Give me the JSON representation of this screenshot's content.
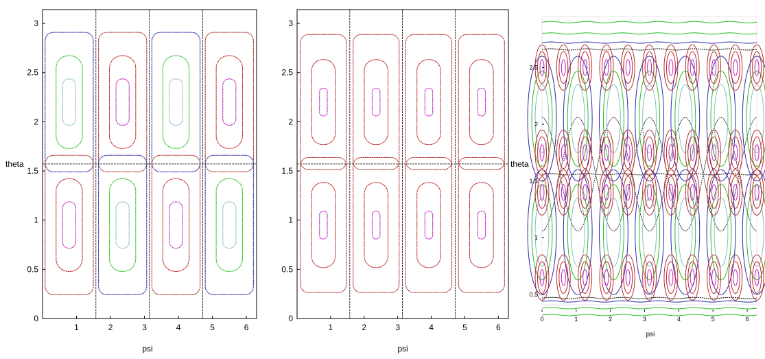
{
  "chart_data": [
    {
      "type": "line",
      "subtype": "phase-portrait-contours",
      "xlabel": "psi",
      "ylabel": "theta",
      "xlim": [
        0,
        6.3
      ],
      "ylim": [
        0,
        3.14
      ],
      "x_ticks": [
        1,
        2,
        3,
        4,
        5,
        6
      ],
      "y_ticks": [
        0,
        0.5,
        1,
        1.5,
        2,
        2.5,
        3
      ],
      "x_tick_labels": [
        "1",
        "2",
        "3",
        "4",
        "5",
        "6"
      ],
      "y_tick_labels": [
        "0",
        "0.5",
        "1",
        "1.5",
        "2",
        "2.5",
        "3"
      ],
      "separatrices": {
        "vertical_x": [
          1.571,
          3.142,
          4.712
        ],
        "horizontal_y": [
          1.571
        ]
      },
      "grid": false,
      "legend": "none",
      "cells": [
        {
          "cx": 0.785,
          "cy": 2.2,
          "colors": [
            "#2a2ab0",
            "#22c022",
            "#7fbfbf"
          ]
        },
        {
          "cx": 2.356,
          "cy": 2.2,
          "colors": [
            "#b03030",
            "#c02020",
            "#c020c0"
          ]
        },
        {
          "cx": 3.927,
          "cy": 2.2,
          "colors": [
            "#2a2ab0",
            "#22c022",
            "#7fbfbf"
          ]
        },
        {
          "cx": 5.498,
          "cy": 2.2,
          "colors": [
            "#b03030",
            "#c02020",
            "#c020c0"
          ]
        },
        {
          "cx": 0.785,
          "cy": 0.95,
          "colors": [
            "#b03030",
            "#c02020",
            "#c020c0"
          ]
        },
        {
          "cx": 2.356,
          "cy": 0.95,
          "colors": [
            "#2a2ab0",
            "#22c022",
            "#7fbfbf"
          ]
        },
        {
          "cx": 3.927,
          "cy": 0.95,
          "colors": [
            "#b03030",
            "#c02020",
            "#c020c0"
          ]
        },
        {
          "cx": 5.498,
          "cy": 0.95,
          "colors": [
            "#2a2ab0",
            "#22c022",
            "#7fbfbf"
          ]
        }
      ],
      "contour_levels": [
        0.95,
        0.6,
        0.3
      ]
    },
    {
      "type": "line",
      "subtype": "phase-portrait-contours",
      "xlabel": "psi",
      "ylabel": "theta",
      "xlim": [
        0,
        6.3
      ],
      "ylim": [
        0,
        3.14
      ],
      "x_ticks": [
        1,
        2,
        3,
        4,
        5,
        6
      ],
      "y_ticks": [
        0,
        0.5,
        1,
        1.5,
        2,
        2.5,
        3
      ],
      "x_tick_labels": [
        "1",
        "2",
        "3",
        "4",
        "5",
        "6"
      ],
      "y_tick_labels": [
        "0",
        "0.5",
        "1",
        "1.5",
        "2",
        "2.5",
        "3"
      ],
      "separatrices": {
        "vertical_x": [
          1.571,
          3.142,
          4.712
        ],
        "horizontal_y": [
          1.571
        ]
      },
      "grid": false,
      "legend": "none",
      "cells": [
        {
          "cx": 0.785,
          "cy": 2.2,
          "colors": [
            "#b03030",
            "#c02020",
            "#c020c0"
          ]
        },
        {
          "cx": 2.356,
          "cy": 2.2,
          "colors": [
            "#b03030",
            "#c02020",
            "#c020c0"
          ]
        },
        {
          "cx": 3.927,
          "cy": 2.2,
          "colors": [
            "#b03030",
            "#c02020",
            "#c020c0"
          ]
        },
        {
          "cx": 5.498,
          "cy": 2.2,
          "colors": [
            "#b03030",
            "#c02020",
            "#c020c0"
          ]
        },
        {
          "cx": 0.785,
          "cy": 0.95,
          "colors": [
            "#b03030",
            "#c02020",
            "#c020c0"
          ]
        },
        {
          "cx": 2.356,
          "cy": 0.95,
          "colors": [
            "#b03030",
            "#c02020",
            "#c020c0"
          ]
        },
        {
          "cx": 3.927,
          "cy": 0.95,
          "colors": [
            "#b03030",
            "#c02020",
            "#c020c0"
          ]
        },
        {
          "cx": 5.498,
          "cy": 0.95,
          "colors": [
            "#b03030",
            "#c02020",
            "#c020c0"
          ]
        }
      ],
      "contour_levels": [
        0.92,
        0.55,
        0.18
      ]
    },
    {
      "type": "line",
      "subtype": "phase-portrait-contours",
      "xlabel": "psi",
      "ylabel": "theta",
      "xlim": [
        0,
        6.28
      ],
      "ylim": [
        0.35,
        2.95
      ],
      "x_ticks": [
        0,
        1,
        2,
        3,
        4,
        5,
        6
      ],
      "y_ticks": [
        0.5,
        1,
        1.5,
        2,
        2.5
      ],
      "x_tick_labels": [
        "0",
        "1",
        "2",
        "3",
        "4",
        "5",
        "6"
      ],
      "y_tick_labels": [
        "0.5",
        "1",
        "1.5",
        "2",
        "2.5"
      ],
      "grid": false,
      "legend": "none",
      "big_centers": {
        "x": [
          0,
          1.047,
          2.094,
          3.142,
          4.189,
          5.236,
          6.283
        ],
        "upper_y": [
          2.05,
          2.05,
          2.05,
          2.05,
          2.05,
          2.05,
          2.05
        ],
        "lower_y": [
          1.05,
          1.05,
          1.05,
          1.05,
          1.05,
          1.05,
          1.05
        ],
        "colors": [
          "#2a2ab0",
          "#22c022",
          "#7fbfbf"
        ]
      },
      "small_centers": {
        "x": [
          0.0,
          0.628,
          1.257,
          1.885,
          2.513,
          3.142,
          3.77,
          4.398,
          5.027,
          5.655,
          6.283
        ],
        "rows_y": [
          2.5,
          1.75,
          1.4,
          0.65
        ],
        "colors": [
          "#b03030",
          "#c02020",
          "#c020c0"
        ]
      },
      "horizontal_curves": [
        {
          "y": 2.9,
          "color": "#22c022"
        },
        {
          "y": 2.8,
          "color": "#22c022"
        },
        {
          "y": 2.72,
          "color": "#2a2ab0"
        },
        {
          "y": 2.66,
          "color": "#000000"
        },
        {
          "y": 1.56,
          "color": "#000000"
        },
        {
          "y": 0.47,
          "color": "#000000"
        },
        {
          "y": 0.44,
          "color": "#2a2ab0"
        },
        {
          "y": 0.38,
          "color": "#22c022"
        },
        {
          "y": 0.32,
          "color": "#22c022"
        }
      ]
    }
  ]
}
